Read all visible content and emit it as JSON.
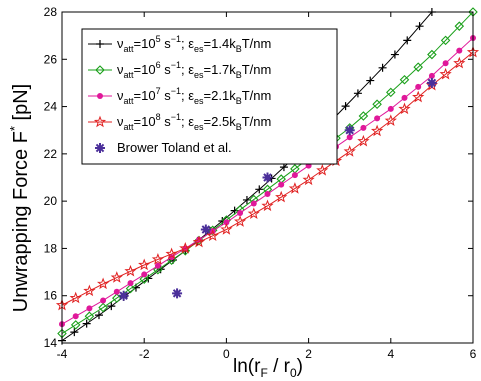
{
  "chart_data": {
    "type": "line",
    "ylabel_main": "Unwrapping Force F",
    "ylabel_sup": "*",
    "ylabel_unit": " [pN]",
    "xlabel": {
      "ln": "ln(r",
      "sub1": "F",
      "mid": " / r",
      "sub2": "0",
      "close": ")"
    },
    "xlim": [
      -4,
      6
    ],
    "ylim": [
      14,
      28
    ],
    "x_ticks": [
      -4,
      -2,
      0,
      2,
      4,
      6
    ],
    "y_ticks": [
      14,
      16,
      18,
      20,
      22,
      24,
      26,
      28
    ],
    "x_tick_labels": [
      "-4",
      "-2",
      "0",
      "2",
      "4",
      "6"
    ],
    "y_tick_labels": [
      "14",
      "16",
      "18",
      "20",
      "22",
      "24",
      "26",
      "28"
    ],
    "grid": false,
    "legend_position": "top-left",
    "legend": [
      {
        "nu": "ν",
        "nu_sub": "att",
        "rate_pre": "=10",
        "rate_exp": "5",
        "rate_unit": " s",
        "rate_unit_exp": "−1",
        "sep": "; ",
        "eps": "ε",
        "eps_sub": "es",
        "eps_val": "=1.4k",
        "k_sub": "B",
        "eps_unit": "T/nm"
      },
      {
        "nu": "ν",
        "nu_sub": "att",
        "rate_pre": "=10",
        "rate_exp": "6",
        "rate_unit": " s",
        "rate_unit_exp": "−1",
        "sep": "; ",
        "eps": "ε",
        "eps_sub": "es",
        "eps_val": "=1.7k",
        "k_sub": "B",
        "eps_unit": "T/nm"
      },
      {
        "nu": "ν",
        "nu_sub": "att",
        "rate_pre": "=10",
        "rate_exp": "7",
        "rate_unit": " s",
        "rate_unit_exp": "−1",
        "sep": "; ",
        "eps": "ε",
        "eps_sub": "es",
        "eps_val": "=2.1k",
        "k_sub": "B",
        "eps_unit": "T/nm"
      },
      {
        "nu": "ν",
        "nu_sub": "att",
        "rate_pre": "=10",
        "rate_exp": "8",
        "rate_unit": " s",
        "rate_unit_exp": "−1",
        "sep": "; ",
        "eps": "ε",
        "eps_sub": "es",
        "eps_val": "=2.5k",
        "k_sub": "B",
        "eps_unit": "T/nm"
      },
      {
        "text": "Brower  Toland et al."
      }
    ],
    "series": [
      {
        "color": "#000000",
        "marker": "plus",
        "x": [
          -4,
          -3,
          -2,
          -1,
          0,
          1,
          2,
          3,
          4,
          5
        ],
        "y": [
          14.1,
          15.3,
          16.6,
          17.9,
          19.3,
          20.8,
          22.4,
          24.2,
          26.0,
          28.0
        ]
      },
      {
        "color": "#1aa01a",
        "marker": "diamond",
        "x": [
          -4,
          -3,
          -2,
          -1,
          0,
          1,
          2,
          3,
          4,
          5,
          6
        ],
        "y": [
          14.4,
          15.5,
          16.7,
          17.9,
          19.2,
          20.5,
          21.8,
          23.1,
          24.6,
          26.2,
          28.0
        ]
      },
      {
        "color": "#e0189a",
        "marker": "dot",
        "x": [
          -4,
          -3,
          -2,
          -1,
          0,
          1,
          2,
          3,
          4,
          5,
          6
        ],
        "y": [
          14.8,
          15.8,
          16.9,
          18.0,
          19.1,
          20.3,
          21.5,
          22.7,
          23.9,
          25.3,
          26.9
        ]
      },
      {
        "color": "#e02020",
        "marker": "star",
        "x": [
          -4,
          -3,
          -2,
          -1,
          0,
          1,
          2,
          3,
          4,
          5,
          6
        ],
        "y": [
          15.6,
          16.5,
          17.3,
          18.0,
          18.8,
          19.8,
          20.9,
          22.1,
          23.4,
          24.9,
          26.3
        ]
      }
    ],
    "reference_points": {
      "color": "#4b2f9a",
      "marker": "asterisk",
      "x": [
        -2.5,
        -1.2,
        -0.5,
        1.0,
        3.0,
        5.0
      ],
      "y": [
        16.0,
        16.1,
        18.8,
        21.0,
        23.0,
        25.0
      ]
    }
  }
}
